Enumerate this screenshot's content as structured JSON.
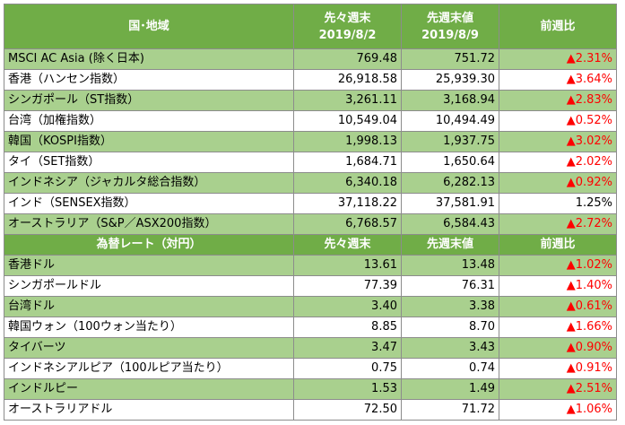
{
  "header1": {
    "col1": "国･地域",
    "col2_line1": "先々週末",
    "col2_line2": "2019/8/2",
    "col3_line1": "先週末値",
    "col3_line2": "2019/8/9",
    "col4": "前週比"
  },
  "indices": [
    {
      "name": "MSCI AC Asia (除く日本)",
      "prev2": "769.48",
      "prev": "751.72",
      "change": "▲2.31%",
      "dir": "up"
    },
    {
      "name": "香港（ハンセン指数）",
      "prev2": "26,918.58",
      "prev": "25,939.30",
      "change": "▲3.64%",
      "dir": "up"
    },
    {
      "name": "シンガポール（ST指数）",
      "prev2": "3,261.11",
      "prev": "3,168.94",
      "change": "▲2.83%",
      "dir": "up"
    },
    {
      "name": "台湾（加権指数）",
      "prev2": "10,549.04",
      "prev": "10,494.49",
      "change": "▲0.52%",
      "dir": "up"
    },
    {
      "name": "韓国（KOSPI指数）",
      "prev2": "1,998.13",
      "prev": "1,937.75",
      "change": "▲3.02%",
      "dir": "up"
    },
    {
      "name": "タイ（SET指数）",
      "prev2": "1,684.71",
      "prev": "1,650.64",
      "change": "▲2.02%",
      "dir": "up"
    },
    {
      "name": "インドネシア（ジャカルタ総合指数）",
      "prev2": "6,340.18",
      "prev": "6,282.13",
      "change": "▲0.92%",
      "dir": "up"
    },
    {
      "name": "インド（SENSEX指数）",
      "prev2": "37,118.22",
      "prev": "37,581.91",
      "change": "1.25%",
      "dir": "flat"
    },
    {
      "name": "オーストラリア（S&P／ASX200指数）",
      "prev2": "6,768.57",
      "prev": "6,584.43",
      "change": "▲2.72%",
      "dir": "up"
    }
  ],
  "header2": {
    "col1": "為替レート（対円）",
    "col2": "先々週末",
    "col3": "先週末値",
    "col4": "前週比"
  },
  "fx": [
    {
      "name": "香港ドル",
      "prev2": "13.61",
      "prev": "13.48",
      "change": "▲1.02%",
      "dir": "up"
    },
    {
      "name": "シンガポールドル",
      "prev2": "77.39",
      "prev": "76.31",
      "change": "▲1.40%",
      "dir": "up"
    },
    {
      "name": "台湾ドル",
      "prev2": "3.40",
      "prev": "3.38",
      "change": "▲0.61%",
      "dir": "up"
    },
    {
      "name": "韓国ウォン（100ウォン当たり）",
      "prev2": "8.85",
      "prev": "8.70",
      "change": "▲1.66%",
      "dir": "up"
    },
    {
      "name": "タイバーツ",
      "prev2": "3.47",
      "prev": "3.43",
      "change": "▲0.90%",
      "dir": "up"
    },
    {
      "name": "インドネシアルピア（100ルピア当たり）",
      "prev2": "0.75",
      "prev": "0.74",
      "change": "▲0.91%",
      "dir": "up"
    },
    {
      "name": "インドルピー",
      "prev2": "1.53",
      "prev": "1.49",
      "change": "▲2.51%",
      "dir": "up"
    },
    {
      "name": "オーストラリアドル",
      "prev2": "72.50",
      "prev": "71.72",
      "change": "▲1.06%",
      "dir": "up"
    }
  ]
}
